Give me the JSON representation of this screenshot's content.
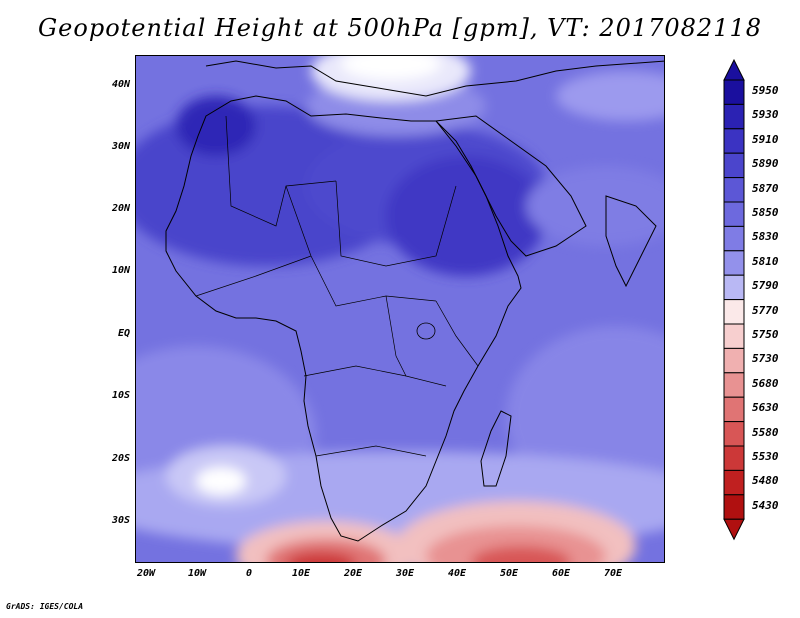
{
  "title": "Geopotential Height at 500hPa [gpm], VT: 2017082118",
  "footer": "GrADS: IGES/COLA",
  "map": {
    "region": "Africa",
    "lat_labels": [
      "40N",
      "30N",
      "20N",
      "10N",
      "EQ",
      "10S",
      "20S",
      "30S"
    ],
    "lon_labels": [
      "20W",
      "10W",
      "0",
      "10E",
      "20E",
      "30E",
      "40E",
      "50E",
      "60E",
      "70E"
    ],
    "lat_range": [
      -37,
      44
    ],
    "lon_range": [
      -23,
      78
    ]
  },
  "colorbar": {
    "levels": [
      "5950",
      "5930",
      "5910",
      "5890",
      "5870",
      "5850",
      "5830",
      "5810",
      "5790",
      "5770",
      "5750",
      "5730",
      "5680",
      "5630",
      "5580",
      "5530",
      "5480",
      "5430"
    ],
    "colors": [
      "#1a0f9e",
      "#2b22b3",
      "#3b33c2",
      "#4b45cc",
      "#5c57d6",
      "#6d69de",
      "#7f7ce5",
      "#9391eb",
      "#b9b8f4",
      "#fbe9e9",
      "#f7cfcf",
      "#f0b0b0",
      "#e89292",
      "#e07474",
      "#d85656",
      "#cc3838",
      "#c02020",
      "#b01010"
    ]
  },
  "contours": {
    "description_free": true
  }
}
